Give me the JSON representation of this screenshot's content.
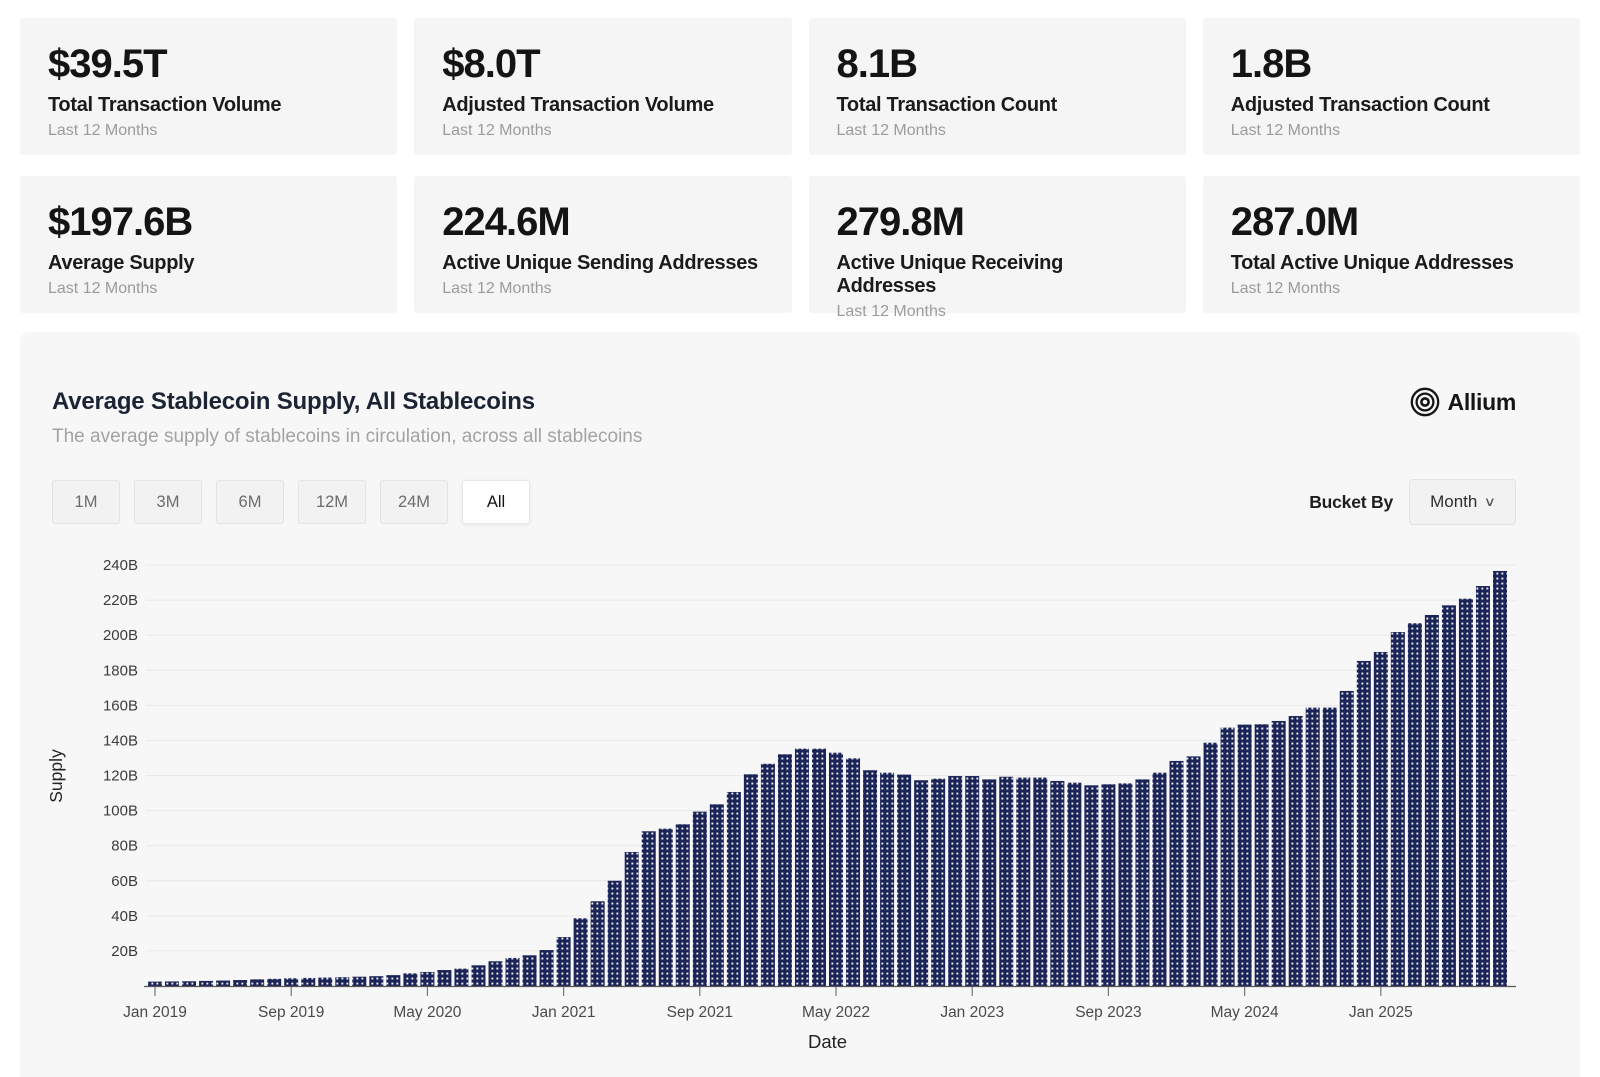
{
  "stats": [
    {
      "value": "$39.5T",
      "label": "Total Transaction Volume",
      "period": "Last 12 Months"
    },
    {
      "value": "$8.0T",
      "label": "Adjusted Transaction Volume",
      "period": "Last 12 Months"
    },
    {
      "value": "8.1B",
      "label": "Total Transaction Count",
      "period": "Last 12 Months"
    },
    {
      "value": "1.8B",
      "label": "Adjusted Transaction Count",
      "period": "Last 12 Months"
    },
    {
      "value": "$197.6B",
      "label": "Average Supply",
      "period": "Last 12 Months"
    },
    {
      "value": "224.6M",
      "label": "Active Unique Sending Addresses",
      "period": "Last 12 Months"
    },
    {
      "value": "279.8M",
      "label": "Active Unique Receiving Addresses",
      "period": "Last 12 Months"
    },
    {
      "value": "287.0M",
      "label": "Total Active Unique Addresses",
      "period": "Last 12 Months"
    }
  ],
  "chart_panel": {
    "title": "Average Stablecoin Supply, All Stablecoins",
    "subtitle": "The average supply of stablecoins in circulation, across all stablecoins",
    "logo_text": "Allium",
    "range_buttons": [
      "1M",
      "3M",
      "6M",
      "12M",
      "24M",
      "All"
    ],
    "active_range": "All",
    "bucket_by_label": "Bucket By",
    "bucket_value": "Month",
    "bucket_chevron": "⌄"
  },
  "chart_data": {
    "type": "bar",
    "title": "Average Stablecoin Supply, All Stablecoins",
    "xlabel": "Date",
    "ylabel": "Supply",
    "unit": "B (billions USD)",
    "ylim": [
      0,
      250
    ],
    "grid": true,
    "bar_color": "#1b2457",
    "bar_dot_color": "#ffffff",
    "y_ticks": [
      20,
      40,
      60,
      80,
      100,
      120,
      140,
      160,
      180,
      200,
      220,
      240
    ],
    "y_tick_labels": [
      "20B",
      "40B",
      "60B",
      "80B",
      "100B",
      "120B",
      "140B",
      "160B",
      "180B",
      "200B",
      "220B",
      "240B"
    ],
    "x_tick_every": 8,
    "x_tick_labels": [
      "Jan 2019",
      "Sep 2019",
      "May 2020",
      "Jan 2021",
      "Sep 2021",
      "May 2022",
      "Jan 2023",
      "Sep 2023",
      "May 2024",
      "Jan 2025"
    ],
    "x": [
      "Jan 2019",
      "Feb 2019",
      "Mar 2019",
      "Apr 2019",
      "May 2019",
      "Jun 2019",
      "Jul 2019",
      "Aug 2019",
      "Sep 2019",
      "Oct 2019",
      "Nov 2019",
      "Dec 2019",
      "Jan 2020",
      "Feb 2020",
      "Mar 2020",
      "Apr 2020",
      "May 2020",
      "Jun 2020",
      "Jul 2020",
      "Aug 2020",
      "Sep 2020",
      "Oct 2020",
      "Nov 2020",
      "Dec 2020",
      "Jan 2021",
      "Feb 2021",
      "Mar 2021",
      "Apr 2021",
      "May 2021",
      "Jun 2021",
      "Jul 2021",
      "Aug 2021",
      "Sep 2021",
      "Oct 2021",
      "Nov 2021",
      "Dec 2021",
      "Jan 2022",
      "Feb 2022",
      "Mar 2022",
      "Apr 2022",
      "May 2022",
      "Jun 2022",
      "Jul 2022",
      "Aug 2022",
      "Sep 2022",
      "Oct 2022",
      "Nov 2022",
      "Dec 2022",
      "Jan 2023",
      "Feb 2023",
      "Mar 2023",
      "Apr 2023",
      "May 2023",
      "Jun 2023",
      "Jul 2023",
      "Aug 2023",
      "Sep 2023",
      "Oct 2023",
      "Nov 2023",
      "Dec 2023",
      "Jan 2024",
      "Feb 2024",
      "Mar 2024",
      "Apr 2024",
      "May 2024",
      "Jun 2024",
      "Jul 2024",
      "Aug 2024",
      "Sep 2024",
      "Oct 2024",
      "Nov 2024",
      "Dec 2024",
      "Jan 2025",
      "Feb 2025",
      "Mar 2025",
      "Apr 2025",
      "May 2025",
      "Jun 2025",
      "Jul 2025",
      "Aug 2025"
    ],
    "values": [
      2.5,
      2.6,
      2.7,
      2.9,
      3.1,
      3.4,
      3.8,
      4.1,
      4.4,
      4.6,
      4.8,
      5.0,
      5.3,
      5.6,
      6.2,
      7.2,
      8.0,
      9.1,
      9.9,
      11.8,
      14.1,
      16.0,
      17.5,
      20.5,
      27.9,
      38.6,
      48.3,
      60.0,
      76.4,
      88.2,
      89.7,
      92.2,
      99.4,
      103.6,
      110.6,
      120.7,
      126.7,
      132.1,
      135.3,
      135.3,
      133.0,
      129.8,
      123.0,
      121.6,
      120.5,
      117.3,
      118.2,
      119.7,
      119.7,
      117.8,
      119.3,
      118.8,
      118.8,
      116.9,
      115.9,
      114.4,
      115.0,
      115.5,
      117.8,
      121.6,
      128.3,
      130.9,
      138.7,
      147.3,
      149.0,
      149.2,
      151.1,
      153.9,
      158.7,
      158.7,
      168.2,
      185.3,
      190.4,
      201.8,
      206.8,
      211.5,
      217.0,
      220.8,
      228.0,
      236.6
    ]
  }
}
